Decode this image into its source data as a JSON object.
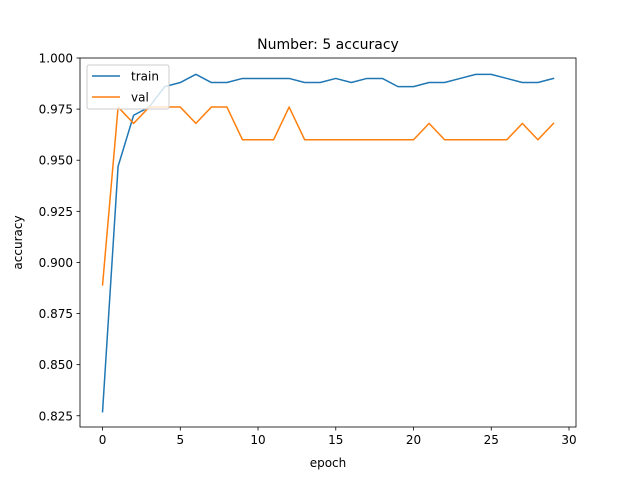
{
  "chart_data": {
    "type": "line",
    "title": "Number: 5 accuracy",
    "xlabel": "epoch",
    "ylabel": "accuracy",
    "xlim": [
      -1.45,
      30.45
    ],
    "ylim": [
      0.8195,
      1.0
    ],
    "x_ticks": [
      0,
      5,
      10,
      15,
      20,
      25,
      30
    ],
    "x_tick_labels": [
      "0",
      "5",
      "10",
      "15",
      "20",
      "25",
      "30"
    ],
    "y_ticks": [
      0.825,
      0.85,
      0.875,
      0.9,
      0.925,
      0.95,
      0.975,
      1.0
    ],
    "y_tick_labels": [
      "0.825",
      "0.850",
      "0.875",
      "0.900",
      "0.925",
      "0.950",
      "0.975",
      "1.000"
    ],
    "grid": false,
    "legend_position": "top-left",
    "x": [
      0,
      1,
      2,
      3,
      4,
      5,
      6,
      7,
      8,
      9,
      10,
      11,
      12,
      13,
      14,
      15,
      16,
      17,
      18,
      19,
      20,
      21,
      22,
      23,
      24,
      25,
      26,
      27,
      28,
      29
    ],
    "series": [
      {
        "name": "train",
        "color": "#1f77b4",
        "values": [
          0.827,
          0.947,
          0.972,
          0.976,
          0.986,
          0.988,
          0.992,
          0.988,
          0.988,
          0.99,
          0.99,
          0.99,
          0.99,
          0.988,
          0.988,
          0.99,
          0.988,
          0.99,
          0.99,
          0.986,
          0.986,
          0.988,
          0.988,
          0.99,
          0.992,
          0.992,
          0.99,
          0.988,
          0.988,
          0.99
        ]
      },
      {
        "name": "val",
        "color": "#ff7f0e",
        "values": [
          0.889,
          0.976,
          0.968,
          0.976,
          0.976,
          0.976,
          0.968,
          0.976,
          0.976,
          0.96,
          0.96,
          0.96,
          0.976,
          0.96,
          0.96,
          0.96,
          0.96,
          0.96,
          0.96,
          0.96,
          0.96,
          0.968,
          0.96,
          0.96,
          0.96,
          0.96,
          0.96,
          0.968,
          0.96,
          0.968
        ]
      }
    ]
  }
}
